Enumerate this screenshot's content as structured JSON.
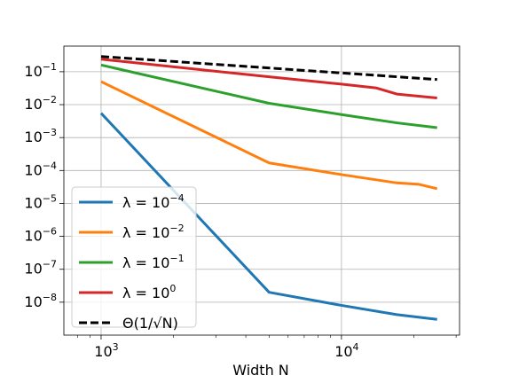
{
  "chart_data": {
    "type": "line",
    "xlabel": "Width N",
    "ylabel": "",
    "xscale": "log",
    "yscale": "log",
    "xlim": [
      700,
      31000
    ],
    "ylim": [
      1e-09,
      0.6
    ],
    "grid": true,
    "legend_placement": "lower-left",
    "xticks": [
      {
        "value": 1000,
        "mantissa": "10",
        "exp": "3"
      },
      {
        "value": 10000,
        "mantissa": "10",
        "exp": "4"
      }
    ],
    "yticks": [
      {
        "value": 1e-08,
        "mantissa": "10",
        "exp": "−8"
      },
      {
        "value": 1e-07,
        "mantissa": "10",
        "exp": "−7"
      },
      {
        "value": 1e-06,
        "mantissa": "10",
        "exp": "−6"
      },
      {
        "value": 1e-05,
        "mantissa": "10",
        "exp": "−5"
      },
      {
        "value": 0.0001,
        "mantissa": "10",
        "exp": "−4"
      },
      {
        "value": 0.001,
        "mantissa": "10",
        "exp": "−3"
      },
      {
        "value": 0.01,
        "mantissa": "10",
        "exp": "−2"
      },
      {
        "value": 0.1,
        "mantissa": "10",
        "exp": "−1"
      }
    ],
    "series": [
      {
        "legend_main": "λ = 10",
        "legend_exp": "−4",
        "color": "#1f77b4",
        "dashed": false,
        "x": [
          1000,
          5000,
          10000,
          17000,
          25000
        ],
        "y": [
          0.0055,
          2e-08,
          8e-09,
          4.2e-09,
          3e-09
        ]
      },
      {
        "legend_main": "λ = 10",
        "legend_exp": "−2",
        "color": "#ff7f0e",
        "dashed": false,
        "x": [
          1000,
          5000,
          10000,
          17000,
          21000,
          25000
        ],
        "y": [
          0.05,
          0.00017,
          7.5e-05,
          4.2e-05,
          3.8e-05,
          2.8e-05
        ]
      },
      {
        "legend_main": "λ = 10",
        "legend_exp": "−1",
        "color": "#2ca02c",
        "dashed": false,
        "x": [
          1000,
          5000,
          10000,
          17000,
          25000
        ],
        "y": [
          0.16,
          0.011,
          0.005,
          0.0028,
          0.002
        ]
      },
      {
        "legend_main": "λ = 10",
        "legend_exp": "0",
        "color": "#d62728",
        "dashed": false,
        "x": [
          1000,
          5000,
          10000,
          14000,
          17000,
          25000
        ],
        "y": [
          0.24,
          0.07,
          0.042,
          0.032,
          0.021,
          0.016
        ]
      },
      {
        "legend_main": "Θ(1/√N)",
        "legend_exp": "",
        "color": "#000000",
        "dashed": true,
        "x": [
          1000,
          25000
        ],
        "y": [
          0.29,
          0.058
        ]
      }
    ]
  }
}
